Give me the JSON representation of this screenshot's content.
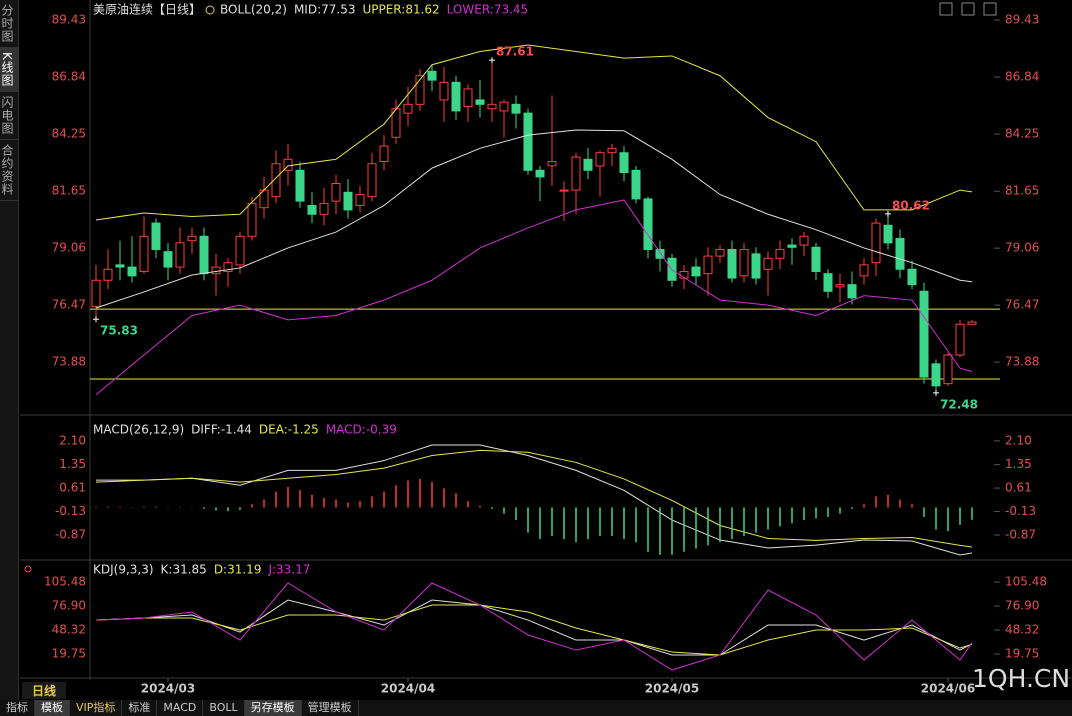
{
  "ui": {
    "sidebar": [
      "分时图",
      "K线图",
      "闪电图",
      "合约资料"
    ],
    "period": "日线",
    "tabs": [
      "指标",
      "模板",
      "VIP指标",
      "标准",
      "MACD",
      "BOLL",
      "另存模板",
      "管理模板"
    ],
    "watermark": "1QH.CN"
  },
  "chart_data": [
    {
      "type": "candlestick",
      "title": "美原油连续【日线】",
      "indicator": "BOLL(20,2)",
      "up_color": "#ff3c3c",
      "down_color": "#3bd68a",
      "xlim": [
        -0.5,
        74.5
      ],
      "ylim": [
        71.61,
        89.98
      ],
      "yticks": [
        89.43,
        86.84,
        84.25,
        81.65,
        79.06,
        76.47,
        73.88
      ],
      "open": [
        76.4,
        77.6,
        78.3,
        78.2,
        78.0,
        80.2,
        78.9,
        78.2,
        79.4,
        79.6,
        77.9,
        78.0,
        78.3,
        79.6,
        80.9,
        81.4,
        82.6,
        82.6,
        81.0,
        80.6,
        81.2,
        81.6,
        81.0,
        81.4,
        83.0,
        84.1,
        85.2,
        85.6,
        87.1,
        85.8,
        86.6,
        85.5,
        85.8,
        85.4,
        85.3,
        85.6,
        85.2,
        82.6,
        82.8,
        81.7,
        81.7,
        83.1,
        82.8,
        83.4,
        83.4,
        82.6,
        81.3,
        79.0,
        78.6,
        77.7,
        78.2,
        77.9,
        78.7,
        79.0,
        77.8,
        78.8,
        78.1,
        78.6,
        79.2,
        79.2,
        79.1,
        77.9,
        77.3,
        77.4,
        77.8,
        78.4,
        80.1,
        79.5,
        78.1,
        77.1,
        73.8,
        72.9,
        74.2,
        75.6
      ],
      "high": [
        78.3,
        79.0,
        79.4,
        79.6,
        80.5,
        80.4,
        79.3,
        80.0,
        80.0,
        80.0,
        78.8,
        78.6,
        79.8,
        81.4,
        82.3,
        83.5,
        83.8,
        83.0,
        81.6,
        81.8,
        82.4,
        82.2,
        81.9,
        83.4,
        84.2,
        85.8,
        86.4,
        87.2,
        87.4,
        87.3,
        86.9,
        86.5,
        86.7,
        87.61,
        85.8,
        86.0,
        85.4,
        82.8,
        86.0,
        82.1,
        83.4,
        83.6,
        83.5,
        83.8,
        83.7,
        82.8,
        81.4,
        79.4,
        78.8,
        78.3,
        78.6,
        79.1,
        79.2,
        79.4,
        79.3,
        79.1,
        78.9,
        79.4,
        79.5,
        79.8,
        79.3,
        78.1,
        77.9,
        78.0,
        78.6,
        80.4,
        80.62,
        79.9,
        78.5,
        77.5,
        74.0,
        74.3,
        75.8,
        75.8
      ],
      "low": [
        75.83,
        77.2,
        77.6,
        77.5,
        77.9,
        78.6,
        77.6,
        77.9,
        78.8,
        77.6,
        76.9,
        77.3,
        77.9,
        79.4,
        80.4,
        81.1,
        81.9,
        80.9,
        80.2,
        80.1,
        80.6,
        80.4,
        80.7,
        81.2,
        82.6,
        83.8,
        84.6,
        85.3,
        86.2,
        84.8,
        84.9,
        84.8,
        85.0,
        84.8,
        84.1,
        84.5,
        82.4,
        81.2,
        81.9,
        80.3,
        80.6,
        82.2,
        81.4,
        82.8,
        82.1,
        81.1,
        78.6,
        78.0,
        77.3,
        77.2,
        77.4,
        76.9,
        78.4,
        77.5,
        77.5,
        77.4,
        76.9,
        78.1,
        78.3,
        78.7,
        77.6,
        76.8,
        76.6,
        76.5,
        77.4,
        77.8,
        79.0,
        77.7,
        77.2,
        72.9,
        72.48,
        72.8,
        74.1,
        75.6
      ],
      "close": [
        77.6,
        78.1,
        78.2,
        77.8,
        79.6,
        79.0,
        78.2,
        79.3,
        79.6,
        77.9,
        78.2,
        78.4,
        79.6,
        81.1,
        81.7,
        82.9,
        83.1,
        81.2,
        80.6,
        81.1,
        82.0,
        80.8,
        81.5,
        82.9,
        83.7,
        85.4,
        85.6,
        86.9,
        86.7,
        86.6,
        85.3,
        86.3,
        85.6,
        85.6,
        85.7,
        85.2,
        82.6,
        82.3,
        83.0,
        81.7,
        83.2,
        82.6,
        83.4,
        83.6,
        82.5,
        81.3,
        79.0,
        78.6,
        77.6,
        78.0,
        77.8,
        78.7,
        79.0,
        77.7,
        79.0,
        77.7,
        78.6,
        79.0,
        79.1,
        79.6,
        78.0,
        77.1,
        77.4,
        76.8,
        78.3,
        80.2,
        79.3,
        78.1,
        77.4,
        73.2,
        72.8,
        74.2,
        75.6,
        75.7
      ],
      "series": [
        {
          "name": "MID:77.53",
          "color": "#e0e0e0",
          "x": [
            0,
            4,
            8,
            12,
            16,
            20,
            24,
            28,
            32,
            36,
            40,
            44,
            48,
            52,
            56,
            60,
            64,
            68,
            72,
            73
          ],
          "values": [
            76.34,
            77.07,
            77.84,
            78.16,
            79.07,
            79.79,
            81.0,
            82.7,
            83.6,
            84.2,
            84.43,
            84.4,
            83.1,
            81.5,
            80.6,
            79.9,
            79.07,
            78.4,
            77.6,
            77.53
          ]
        },
        {
          "name": "UPPER:81.62",
          "color": "#e6e64c",
          "x": [
            0,
            4,
            8,
            12,
            16,
            20,
            24,
            28,
            32,
            36,
            40,
            44,
            48,
            52,
            56,
            60,
            64,
            68,
            72,
            73
          ],
          "values": [
            80.34,
            80.66,
            80.5,
            80.6,
            82.8,
            83.1,
            84.7,
            87.4,
            88.0,
            88.3,
            88.0,
            87.7,
            87.8,
            86.9,
            85.0,
            83.9,
            80.8,
            80.8,
            81.7,
            81.62
          ]
        },
        {
          "name": "LOWER:73.45",
          "color": "#d030d0",
          "x": [
            0,
            4,
            8,
            12,
            16,
            20,
            24,
            28,
            32,
            36,
            40,
            44,
            48,
            52,
            56,
            60,
            64,
            68,
            72,
            73
          ],
          "values": [
            72.4,
            74.2,
            76.0,
            76.47,
            75.8,
            76.0,
            76.7,
            77.6,
            79.07,
            79.98,
            80.8,
            81.25,
            78.07,
            76.7,
            76.47,
            76.0,
            76.9,
            76.7,
            73.6,
            73.45
          ]
        }
      ],
      "reference_lines": [
        {
          "value": 76.29,
          "color": "#e6e64c"
        },
        {
          "value": 73.11,
          "color": "#e6e64c"
        }
      ],
      "annotations": [
        {
          "x": 33,
          "value": 87.61,
          "color": "#ff4a4a"
        },
        {
          "x": 0,
          "value": 75.83,
          "color": "#3bd68a"
        },
        {
          "x": 66,
          "value": 80.62,
          "color": "#ff4a4a"
        },
        {
          "x": 70,
          "value": 72.48,
          "color": "#3bd68a"
        }
      ]
    },
    {
      "type": "line",
      "indicator": "MACD(26,12,9)",
      "xlim": [
        -0.5,
        74.5
      ],
      "ylim": [
        -1.66,
        2.76
      ],
      "yticks": [
        {
          "value": 2.1,
          "label": "2.10"
        },
        1.35,
        0.61,
        -0.13,
        -0.87
      ],
      "series": [
        {
          "name": "DIFF:-1.44",
          "color": "#e0e0e0",
          "x": [
            0,
            4,
            8,
            12,
            16,
            20,
            24,
            28,
            32,
            36,
            40,
            44,
            48,
            52,
            56,
            60,
            64,
            68,
            72,
            73
          ],
          "values": [
            0.86,
            0.86,
            0.92,
            0.7,
            1.17,
            1.17,
            1.48,
            1.97,
            1.97,
            1.64,
            1.17,
            0.54,
            -0.4,
            -1.03,
            -1.28,
            -1.19,
            -1.03,
            -1.06,
            -1.5,
            -1.44
          ]
        },
        {
          "name": "DEA:-1.25",
          "color": "#e6e64c",
          "x": [
            0,
            4,
            8,
            12,
            16,
            20,
            24,
            28,
            32,
            36,
            40,
            44,
            48,
            52,
            56,
            60,
            64,
            68,
            72,
            73
          ],
          "values": [
            0.8,
            0.86,
            0.92,
            0.8,
            0.92,
            1.04,
            1.24,
            1.64,
            1.8,
            1.74,
            1.42,
            0.9,
            0.22,
            -0.57,
            -0.98,
            -1.04,
            -0.98,
            -0.95,
            -1.2,
            -1.25
          ]
        },
        {
          "name": "MACD:-0.39",
          "type": "bar",
          "color": "#d030d0",
          "up_color": "#ff3c3c",
          "down_color": "#3bd68a",
          "values": [
            0.02,
            0.03,
            0.02,
            0.01,
            0.02,
            0.03,
            0.01,
            -0.01,
            0.01,
            -0.05,
            -0.1,
            -0.12,
            -0.08,
            0.1,
            0.25,
            0.5,
            0.65,
            0.55,
            0.4,
            0.3,
            0.25,
            0.15,
            0.2,
            0.35,
            0.5,
            0.7,
            0.85,
            0.9,
            0.8,
            0.6,
            0.45,
            0.2,
            0.05,
            -0.05,
            -0.2,
            -0.4,
            -0.8,
            -1.0,
            -0.9,
            -1.0,
            -1.1,
            -1.0,
            -0.9,
            -0.9,
            -1.0,
            -1.1,
            -1.4,
            -1.5,
            -1.5,
            -1.4,
            -1.3,
            -1.2,
            -1.1,
            -1.0,
            -0.9,
            -0.8,
            -0.7,
            -0.6,
            -0.5,
            -0.4,
            -0.35,
            -0.3,
            -0.2,
            -0.05,
            0.1,
            0.35,
            0.4,
            0.25,
            0.1,
            -0.3,
            -0.7,
            -0.75,
            -0.55,
            -0.39
          ]
        }
      ]
    },
    {
      "type": "line",
      "indicator": "KDJ(9,3,3)",
      "xlim": [
        -0.5,
        74.5
      ],
      "ylim": [
        -6.4,
        129.3
      ],
      "yticks": [
        105.48,
        {
          "value": 76.9,
          "label": "76.90"
        },
        48.32,
        19.75
      ],
      "xticks": [
        {
          "value": 6,
          "label": "2024/03"
        },
        {
          "value": 26,
          "label": "2024/04"
        },
        {
          "value": 48,
          "label": "2024/05"
        },
        {
          "value": 71,
          "label": "2024/06"
        }
      ],
      "series": [
        {
          "name": "K:31.85",
          "color": "#e0e0e0",
          "x": [
            0,
            4,
            8,
            12,
            16,
            20,
            24,
            28,
            32,
            36,
            40,
            44,
            48,
            52,
            56,
            60,
            64,
            68,
            72,
            73
          ],
          "values": [
            60.2,
            62.6,
            66.2,
            45.9,
            84.0,
            69.8,
            54.3,
            84.0,
            78.1,
            60.2,
            36.4,
            36.4,
            18.6,
            18.6,
            54.3,
            54.3,
            36.4,
            54.3,
            24.5,
            31.85
          ]
        },
        {
          "name": "D:31.19",
          "color": "#e6e64c",
          "x": [
            0,
            4,
            8,
            12,
            16,
            20,
            24,
            28,
            32,
            36,
            40,
            44,
            48,
            52,
            56,
            60,
            64,
            68,
            72,
            73
          ],
          "values": [
            60.2,
            62.6,
            62.6,
            48.3,
            66.2,
            66.2,
            60.2,
            78.1,
            78.1,
            69.8,
            50.7,
            36.4,
            22.1,
            18.6,
            36.4,
            48.3,
            48.3,
            50.7,
            26.9,
            31.19
          ]
        },
        {
          "name": "J:33.17",
          "color": "#d030d0",
          "x": [
            0,
            4,
            8,
            12,
            16,
            20,
            24,
            28,
            32,
            36,
            40,
            44,
            48,
            52,
            56,
            60,
            64,
            68,
            72,
            73
          ],
          "values": [
            60.2,
            62.6,
            69.8,
            36.4,
            104.3,
            69.8,
            48.3,
            104.3,
            78.1,
            42.4,
            24.5,
            36.4,
            0.7,
            18.6,
            95.9,
            66.2,
            12.6,
            60.2,
            12.6,
            33.17
          ]
        }
      ]
    }
  ]
}
